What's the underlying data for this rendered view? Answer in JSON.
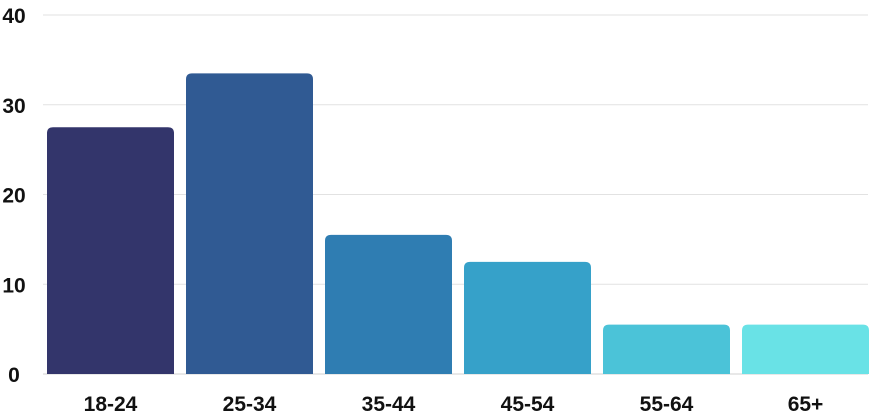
{
  "chart_data": {
    "type": "bar",
    "categories": [
      "18-24",
      "25-34",
      "35-44",
      "45-54",
      "55-64",
      "65+"
    ],
    "values": [
      27.5,
      33.5,
      15.5,
      12.5,
      5.5,
      5.5
    ],
    "ylim": [
      0,
      40
    ],
    "yticks": [
      "0",
      "10",
      "20",
      "30",
      "40"
    ],
    "grid": true,
    "colors": [
      "#33356b",
      "#305a93",
      "#2f7db2",
      "#36a1c9",
      "#4bc3d8",
      "#69e2e6"
    ]
  }
}
